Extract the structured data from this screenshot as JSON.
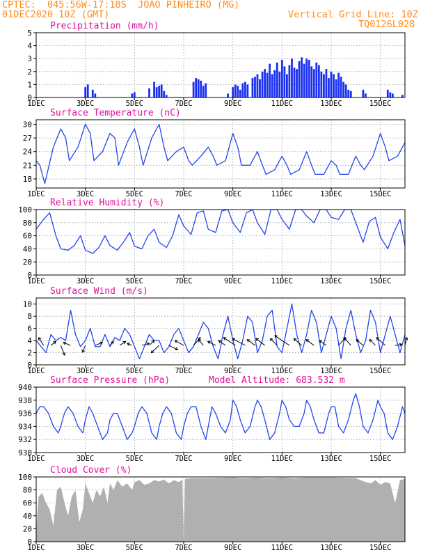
{
  "header": {
    "line1": "CPTEC:  045:56W-17:18S  JOAO PINHEIRO (MG)",
    "line2": "01DEC2020 10Z (GMT)",
    "grid_note": "Vertical Grid Line: 10Z",
    "code": "TQ0126L028",
    "model_altitude": "Model Altitude: 683.532 m"
  },
  "colors": {
    "header": "#ff8c1a",
    "title": "#e0109a",
    "series": "#2244ee",
    "bars": "#1a30f0",
    "cloud": "#b0b0b0",
    "arrow": "#000000"
  },
  "x_ticks": [
    "1DEC",
    "3DEC",
    "5DEC",
    "7DEC",
    "9DEC",
    "11DEC",
    "13DEC",
    "15DEC"
  ],
  "x_tick_days": [
    0,
    2,
    4,
    6,
    8,
    10,
    12,
    14
  ],
  "x_range_days": [
    0,
    15.0
  ],
  "chart_data": [
    {
      "id": "precip",
      "type": "bar",
      "title": "Precipitation (mm/h)",
      "ylim": [
        0,
        5
      ],
      "yticks": [
        "0",
        "1",
        "2",
        "3",
        "4",
        "5"
      ],
      "x": [
        2.0,
        2.1,
        2.3,
        2.4,
        3.9,
        4.0,
        4.6,
        4.8,
        4.9,
        5.0,
        5.1,
        5.2,
        5.3,
        6.4,
        6.5,
        6.6,
        6.7,
        6.8,
        6.9,
        7.8,
        8.0,
        8.1,
        8.2,
        8.3,
        8.4,
        8.5,
        8.6,
        8.8,
        8.9,
        9.0,
        9.1,
        9.2,
        9.3,
        9.4,
        9.5,
        9.6,
        9.7,
        9.8,
        9.9,
        10.0,
        10.1,
        10.2,
        10.3,
        10.4,
        10.5,
        10.6,
        10.7,
        10.8,
        10.9,
        11.0,
        11.1,
        11.2,
        11.3,
        11.4,
        11.5,
        11.6,
        11.7,
        11.8,
        11.9,
        12.0,
        12.1,
        12.2,
        12.3,
        12.4,
        12.5,
        12.6,
        12.7,
        12.8,
        13.3,
        13.4,
        14.3,
        14.4,
        14.5,
        14.9
      ],
      "values": [
        0.8,
        1.0,
        0.6,
        0.3,
        0.3,
        0.4,
        0.7,
        1.2,
        0.8,
        0.9,
        1.0,
        0.5,
        0.2,
        1.2,
        1.5,
        1.4,
        1.3,
        0.9,
        1.1,
        0.3,
        0.8,
        1.0,
        0.9,
        0.6,
        1.1,
        1.2,
        1.0,
        1.5,
        1.6,
        1.8,
        1.4,
        2.0,
        2.2,
        1.9,
        2.6,
        1.8,
        2.1,
        2.7,
        2.0,
        2.9,
        2.4,
        1.8,
        2.5,
        3.0,
        2.3,
        2.2,
        2.8,
        3.1,
        2.6,
        3.0,
        2.9,
        2.4,
        2.2,
        2.7,
        2.5,
        2.0,
        1.8,
        2.2,
        1.5,
        2.0,
        1.8,
        1.4,
        1.9,
        1.6,
        1.2,
        1.0,
        0.6,
        0.5,
        0.6,
        0.3,
        0.6,
        0.4,
        0.3,
        0.2
      ]
    },
    {
      "id": "temperature",
      "type": "line",
      "title": "Surface Temperature (nC)",
      "ylim": [
        16,
        31
      ],
      "yticks": [
        "18",
        "21",
        "24",
        "27",
        "30"
      ],
      "ytick_values": [
        18,
        21,
        24,
        27,
        30
      ],
      "x": [
        0,
        0.15,
        0.35,
        0.7,
        1.0,
        1.2,
        1.35,
        1.7,
        2.0,
        2.2,
        2.35,
        2.7,
        3.0,
        3.2,
        3.35,
        3.7,
        4.0,
        4.2,
        4.35,
        4.7,
        5.0,
        5.2,
        5.35,
        5.7,
        6.0,
        6.2,
        6.35,
        6.7,
        7.0,
        7.2,
        7.35,
        7.7,
        8.0,
        8.2,
        8.35,
        8.7,
        9.0,
        9.2,
        9.35,
        9.7,
        10.0,
        10.2,
        10.35,
        10.7,
        11.0,
        11.2,
        11.35,
        11.7,
        12.0,
        12.2,
        12.35,
        12.7,
        13.0,
        13.2,
        13.35,
        13.7,
        14.0,
        14.2,
        14.35,
        14.7,
        15.0
      ],
      "values": [
        22,
        21,
        17,
        25,
        29,
        27,
        22,
        25,
        30,
        28,
        22,
        24,
        28,
        27,
        21,
        26,
        29,
        25,
        21,
        27,
        30,
        25,
        22,
        24,
        25,
        22,
        21,
        23,
        25,
        23,
        21,
        22,
        28,
        25,
        21,
        21,
        24,
        21,
        19,
        20,
        23,
        21,
        19,
        20,
        24,
        21,
        19,
        19,
        22,
        21,
        19,
        19,
        23,
        21,
        20,
        23,
        28,
        25,
        22,
        23,
        26
      ]
    },
    {
      "id": "humidity",
      "type": "line",
      "title": "Relative Humidity (%)",
      "ylim": [
        0,
        100
      ],
      "yticks": [
        "0",
        "20",
        "40",
        "60",
        "80",
        "100"
      ],
      "x": [
        0,
        0.3,
        0.55,
        0.8,
        1.0,
        1.3,
        1.55,
        1.8,
        2.0,
        2.3,
        2.55,
        2.8,
        3.0,
        3.3,
        3.55,
        3.8,
        4.0,
        4.3,
        4.55,
        4.8,
        5.0,
        5.3,
        5.55,
        5.8,
        6.0,
        6.3,
        6.55,
        6.8,
        7.0,
        7.3,
        7.55,
        7.8,
        8.0,
        8.3,
        8.55,
        8.8,
        9.0,
        9.3,
        9.55,
        9.8,
        10.0,
        10.3,
        10.55,
        10.8,
        11.0,
        11.3,
        11.55,
        11.8,
        12.0,
        12.3,
        12.55,
        12.8,
        13.0,
        13.3,
        13.55,
        13.8,
        14.0,
        14.3,
        14.55,
        14.8,
        15.0
      ],
      "values": [
        70,
        85,
        95,
        60,
        40,
        38,
        45,
        60,
        38,
        33,
        42,
        60,
        45,
        38,
        50,
        65,
        44,
        40,
        60,
        70,
        50,
        42,
        60,
        92,
        75,
        62,
        95,
        98,
        70,
        65,
        98,
        100,
        80,
        65,
        95,
        100,
        80,
        62,
        100,
        100,
        85,
        70,
        100,
        100,
        90,
        80,
        100,
        100,
        88,
        85,
        100,
        100,
        80,
        50,
        82,
        88,
        58,
        40,
        65,
        85,
        45
      ]
    },
    {
      "id": "wind",
      "type": "line",
      "title": "Surface Wind (m/s)",
      "ylim": [
        0,
        11
      ],
      "yticks": [
        "0",
        "2",
        "4",
        "6",
        "8",
        "10"
      ],
      "ytick_values": [
        0,
        2,
        4,
        6,
        8,
        10
      ],
      "x": [
        0,
        0.2,
        0.4,
        0.6,
        0.8,
        1.0,
        1.2,
        1.4,
        1.6,
        1.8,
        2.0,
        2.2,
        2.4,
        2.6,
        2.8,
        3.0,
        3.2,
        3.4,
        3.6,
        3.8,
        4.0,
        4.2,
        4.4,
        4.6,
        4.8,
        5.0,
        5.2,
        5.4,
        5.6,
        5.8,
        6.0,
        6.2,
        6.4,
        6.6,
        6.8,
        7.0,
        7.2,
        7.4,
        7.6,
        7.8,
        8.0,
        8.2,
        8.4,
        8.6,
        8.8,
        9.0,
        9.2,
        9.4,
        9.6,
        9.8,
        10.0,
        10.2,
        10.4,
        10.6,
        10.8,
        11.0,
        11.2,
        11.4,
        11.6,
        11.8,
        12.0,
        12.2,
        12.4,
        12.6,
        12.8,
        13.0,
        13.2,
        13.4,
        13.6,
        13.8,
        14.0,
        14.2,
        14.4,
        14.6,
        14.8,
        15.0
      ],
      "values": [
        4,
        3,
        2,
        5,
        4,
        4.5,
        4,
        9,
        5,
        3,
        4,
        6,
        3,
        3,
        5,
        3,
        4.5,
        4,
        6,
        5,
        3,
        1,
        3,
        5,
        4,
        4,
        2,
        3,
        5,
        6,
        4,
        2,
        3,
        5,
        7,
        6,
        3,
        1,
        5,
        8,
        4,
        1,
        4,
        8,
        7,
        2,
        4,
        8,
        9,
        3,
        2,
        6,
        10,
        5,
        2,
        5,
        9,
        7,
        2,
        5,
        8,
        6,
        1,
        6,
        9,
        5,
        2,
        4,
        9,
        7,
        2,
        5,
        8,
        5,
        2,
        5
      ]
    },
    {
      "id": "wind_vectors",
      "type": "scatter",
      "title": "",
      "x": [
        0.3,
        0.6,
        1.0,
        1.4,
        2.0,
        2.4,
        3.0,
        3.4,
        3.9,
        4.3,
        4.6,
        5.0,
        5.4,
        6.0,
        6.4,
        6.8,
        7.3,
        7.7,
        8.1,
        8.5,
        8.9,
        9.3,
        9.8,
        10.3,
        10.8,
        11.3,
        11.8,
        12.3,
        12.8,
        13.3,
        13.8,
        14.2,
        14.6,
        15.0
      ],
      "u": [
        -1.0,
        1.0,
        0.8,
        -1.5,
        -0.6,
        1.5,
        0.7,
        1.2,
        -1.0,
        1.5,
        1.0,
        -1.6,
        1.8,
        -1.8,
        1.4,
        -1.0,
        -1.6,
        -1.4,
        -2.4,
        -2.6,
        -1.6,
        -1.8,
        -1.4,
        -3.0,
        -1.6,
        -1.6,
        -1.4,
        1.4,
        -1.4,
        -1.4,
        -1.2,
        -1.8,
        1.4,
        0.4
      ],
      "v": [
        1.6,
        0.8,
        -2.0,
        0.6,
        -1.4,
        0.6,
        0.8,
        0.8,
        0.4,
        0.4,
        1.0,
        -1.5,
        -0.9,
        1.0,
        1.6,
        1.2,
        0.8,
        1.0,
        1.6,
        1.4,
        1.2,
        1.4,
        1.4,
        2.0,
        1.4,
        1.2,
        1.0,
        1.6,
        1.6,
        1.2,
        1.2,
        1.6,
        0.2,
        1.6
      ]
    },
    {
      "id": "pressure",
      "type": "line",
      "title": "Surface Pressure (hPa)",
      "ylim": [
        930,
        940
      ],
      "yticks": [
        "930",
        "932",
        "934",
        "936",
        "938",
        "940"
      ],
      "ytick_values": [
        930,
        932,
        934,
        936,
        938,
        940
      ],
      "x": [
        0,
        0.15,
        0.3,
        0.5,
        0.7,
        0.9,
        1.0,
        1.15,
        1.3,
        1.5,
        1.7,
        1.9,
        2.0,
        2.15,
        2.3,
        2.5,
        2.7,
        2.9,
        3.0,
        3.15,
        3.3,
        3.5,
        3.7,
        3.9,
        4.0,
        4.15,
        4.3,
        4.5,
        4.7,
        4.9,
        5.0,
        5.15,
        5.3,
        5.5,
        5.7,
        5.9,
        6.0,
        6.15,
        6.3,
        6.5,
        6.7,
        6.9,
        7.0,
        7.15,
        7.3,
        7.5,
        7.7,
        7.9,
        8.0,
        8.15,
        8.3,
        8.5,
        8.7,
        8.9,
        9.0,
        9.15,
        9.3,
        9.5,
        9.7,
        9.9,
        10.0,
        10.15,
        10.3,
        10.5,
        10.7,
        10.9,
        11.0,
        11.15,
        11.3,
        11.5,
        11.7,
        11.9,
        12.0,
        12.15,
        12.3,
        12.5,
        12.7,
        12.9,
        13.0,
        13.15,
        13.3,
        13.5,
        13.7,
        13.9,
        14.0,
        14.15,
        14.3,
        14.5,
        14.7,
        14.9,
        15.0
      ],
      "values": [
        936,
        937,
        937,
        936,
        934,
        933,
        934,
        936,
        937,
        936,
        934,
        933,
        935,
        937,
        936,
        934,
        932,
        933,
        935,
        936,
        936,
        934,
        932,
        933,
        934,
        936,
        937,
        936,
        933,
        932,
        934,
        936,
        937,
        936,
        933,
        932,
        934,
        936,
        937,
        937,
        934,
        932,
        934,
        937,
        936,
        934,
        933,
        935,
        938,
        937,
        935,
        933,
        934,
        937,
        938,
        937,
        935,
        932,
        933,
        936,
        938,
        937,
        935,
        934,
        934,
        936,
        938,
        937,
        935,
        933,
        933,
        936,
        937,
        937,
        934,
        933,
        935,
        938,
        939,
        937,
        934,
        933,
        935,
        938,
        937,
        936,
        933,
        932,
        934,
        937,
        936
      ]
    },
    {
      "id": "cloud",
      "type": "area",
      "title": "Cloud Cover (%)",
      "ylim": [
        0,
        100
      ],
      "yticks": [
        "0",
        "20",
        "40",
        "60",
        "80",
        "100"
      ],
      "x": [
        0,
        0.1,
        0.25,
        0.4,
        0.55,
        0.7,
        0.85,
        1.0,
        1.15,
        1.3,
        1.45,
        1.6,
        1.75,
        1.9,
        2.0,
        2.15,
        2.3,
        2.45,
        2.6,
        2.75,
        2.9,
        3.0,
        3.15,
        3.3,
        3.5,
        3.7,
        3.9,
        4.0,
        4.2,
        4.4,
        4.6,
        4.8,
        5.0,
        5.2,
        5.4,
        5.6,
        5.8,
        5.95,
        6.0,
        6.05,
        6.3,
        7.0,
        8.0,
        8.5,
        9.0,
        9.5,
        10.0,
        10.5,
        11.0,
        12.0,
        13.0,
        13.4,
        13.6,
        13.8,
        14.0,
        14.2,
        14.4,
        14.6,
        14.8,
        15.0
      ],
      "values": [
        20,
        70,
        75,
        60,
        50,
        25,
        80,
        85,
        60,
        40,
        70,
        80,
        30,
        50,
        90,
        75,
        60,
        80,
        70,
        85,
        60,
        90,
        80,
        95,
        85,
        90,
        80,
        92,
        95,
        88,
        90,
        95,
        93,
        96,
        90,
        95,
        92,
        96,
        0,
        97,
        98,
        98,
        99,
        98,
        99,
        98,
        99,
        98,
        99,
        99,
        98,
        92,
        90,
        95,
        88,
        92,
        90,
        60,
        95,
        97
      ]
    }
  ]
}
